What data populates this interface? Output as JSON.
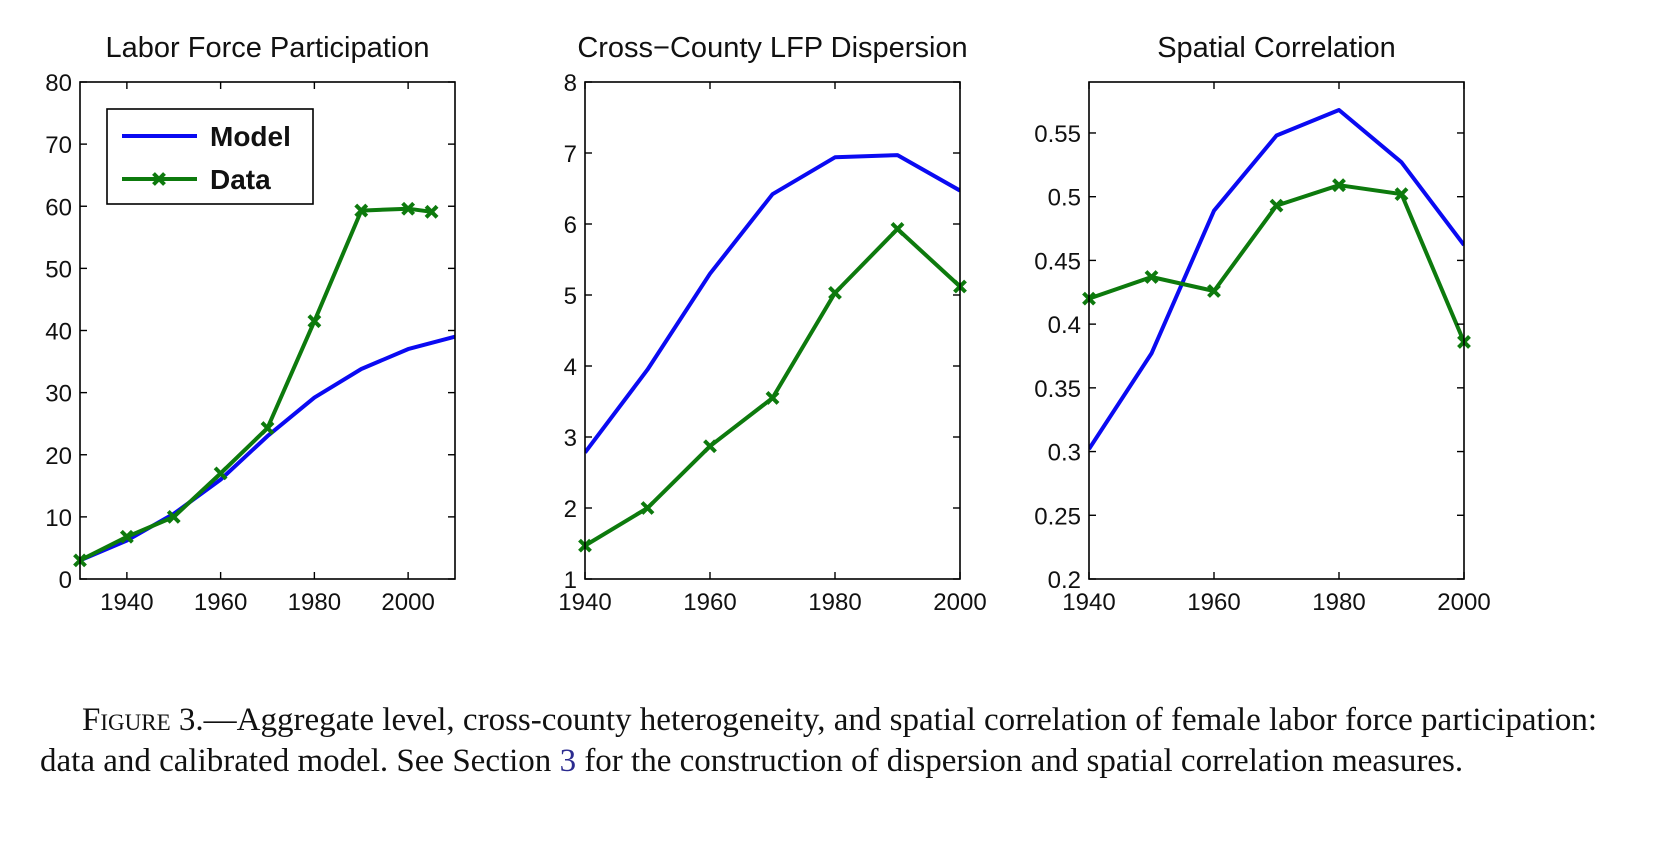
{
  "chart_data": [
    {
      "type": "line",
      "title": "Labor Force Participation",
      "xlim": [
        1930,
        2010
      ],
      "ylim": [
        0,
        80
      ],
      "xticks": [
        1940,
        1960,
        1980,
        2000
      ],
      "yticks": [
        0,
        10,
        20,
        30,
        40,
        50,
        60,
        70,
        80
      ],
      "ytick_labels": [
        "0",
        "10",
        "20",
        "30",
        "40",
        "50",
        "60",
        "70",
        "80"
      ],
      "legend": {
        "position": "top-left",
        "entries": [
          "Model",
          "Data"
        ]
      },
      "series": [
        {
          "name": "Model",
          "color": "#0a0af2",
          "marker": "none",
          "x": [
            1930,
            1940,
            1950,
            1960,
            1970,
            1980,
            1990,
            2000,
            2010
          ],
          "y": [
            3,
            6.2,
            10.5,
            16,
            23,
            29.2,
            33.8,
            37,
            39
          ]
        },
        {
          "name": "Data",
          "color": "#0d7a0d",
          "marker": "x",
          "x": [
            1930,
            1940,
            1950,
            1960,
            1970,
            1980,
            1990,
            2000,
            2005
          ],
          "y": [
            3,
            6.8,
            10,
            17,
            24.3,
            41.5,
            59.3,
            59.6,
            59.1
          ]
        }
      ]
    },
    {
      "type": "line",
      "title": "Cross−County LFP Dispersion",
      "xlim": [
        1940,
        2000
      ],
      "ylim": [
        1,
        8
      ],
      "xticks": [
        1940,
        1960,
        1980,
        2000
      ],
      "yticks": [
        1,
        2,
        3,
        4,
        5,
        6,
        7,
        8
      ],
      "ytick_labels": [
        "1",
        "2",
        "3",
        "4",
        "5",
        "6",
        "7",
        "8"
      ],
      "series": [
        {
          "name": "Model",
          "color": "#0a0af2",
          "marker": "none",
          "x": [
            1940,
            1950,
            1960,
            1970,
            1980,
            1990,
            2000
          ],
          "y": [
            2.78,
            3.95,
            5.3,
            6.42,
            6.94,
            6.97,
            6.47
          ]
        },
        {
          "name": "Data",
          "color": "#0d7a0d",
          "marker": "x",
          "x": [
            1940,
            1950,
            1960,
            1970,
            1980,
            1990,
            2000
          ],
          "y": [
            1.47,
            2.0,
            2.87,
            3.55,
            5.03,
            5.93,
            5.12
          ]
        }
      ]
    },
    {
      "type": "line",
      "title": "Spatial Correlation",
      "xlim": [
        1940,
        2000
      ],
      "ylim": [
        0.2,
        0.59
      ],
      "xticks": [
        1940,
        1960,
        1980,
        2000
      ],
      "yticks": [
        0.2,
        0.25,
        0.3,
        0.35,
        0.4,
        0.45,
        0.5,
        0.55
      ],
      "ytick_labels": [
        "0.2",
        "0.25",
        "0.3",
        "0.35",
        "0.4",
        "0.45",
        "0.5",
        "0.55"
      ],
      "series": [
        {
          "name": "Model",
          "color": "#0a0af2",
          "marker": "none",
          "x": [
            1940,
            1950,
            1960,
            1970,
            1980,
            1990,
            2000
          ],
          "y": [
            0.302,
            0.377,
            0.489,
            0.548,
            0.568,
            0.527,
            0.462
          ]
        },
        {
          "name": "Data",
          "color": "#0d7a0d",
          "marker": "x",
          "x": [
            1940,
            1950,
            1960,
            1970,
            1980,
            1990,
            2000
          ],
          "y": [
            0.42,
            0.437,
            0.426,
            0.493,
            0.509,
            0.502,
            0.386
          ]
        }
      ]
    }
  ],
  "caption": {
    "label": "Figure 3",
    "text_before_ref": ".—Aggregate level, cross-county heterogeneity, and spatial correlation of female labor force participation: data and calibrated model. See Section ",
    "ref": "3",
    "text_after_ref": " for the construction of dispersion and spatial correlation measures."
  }
}
